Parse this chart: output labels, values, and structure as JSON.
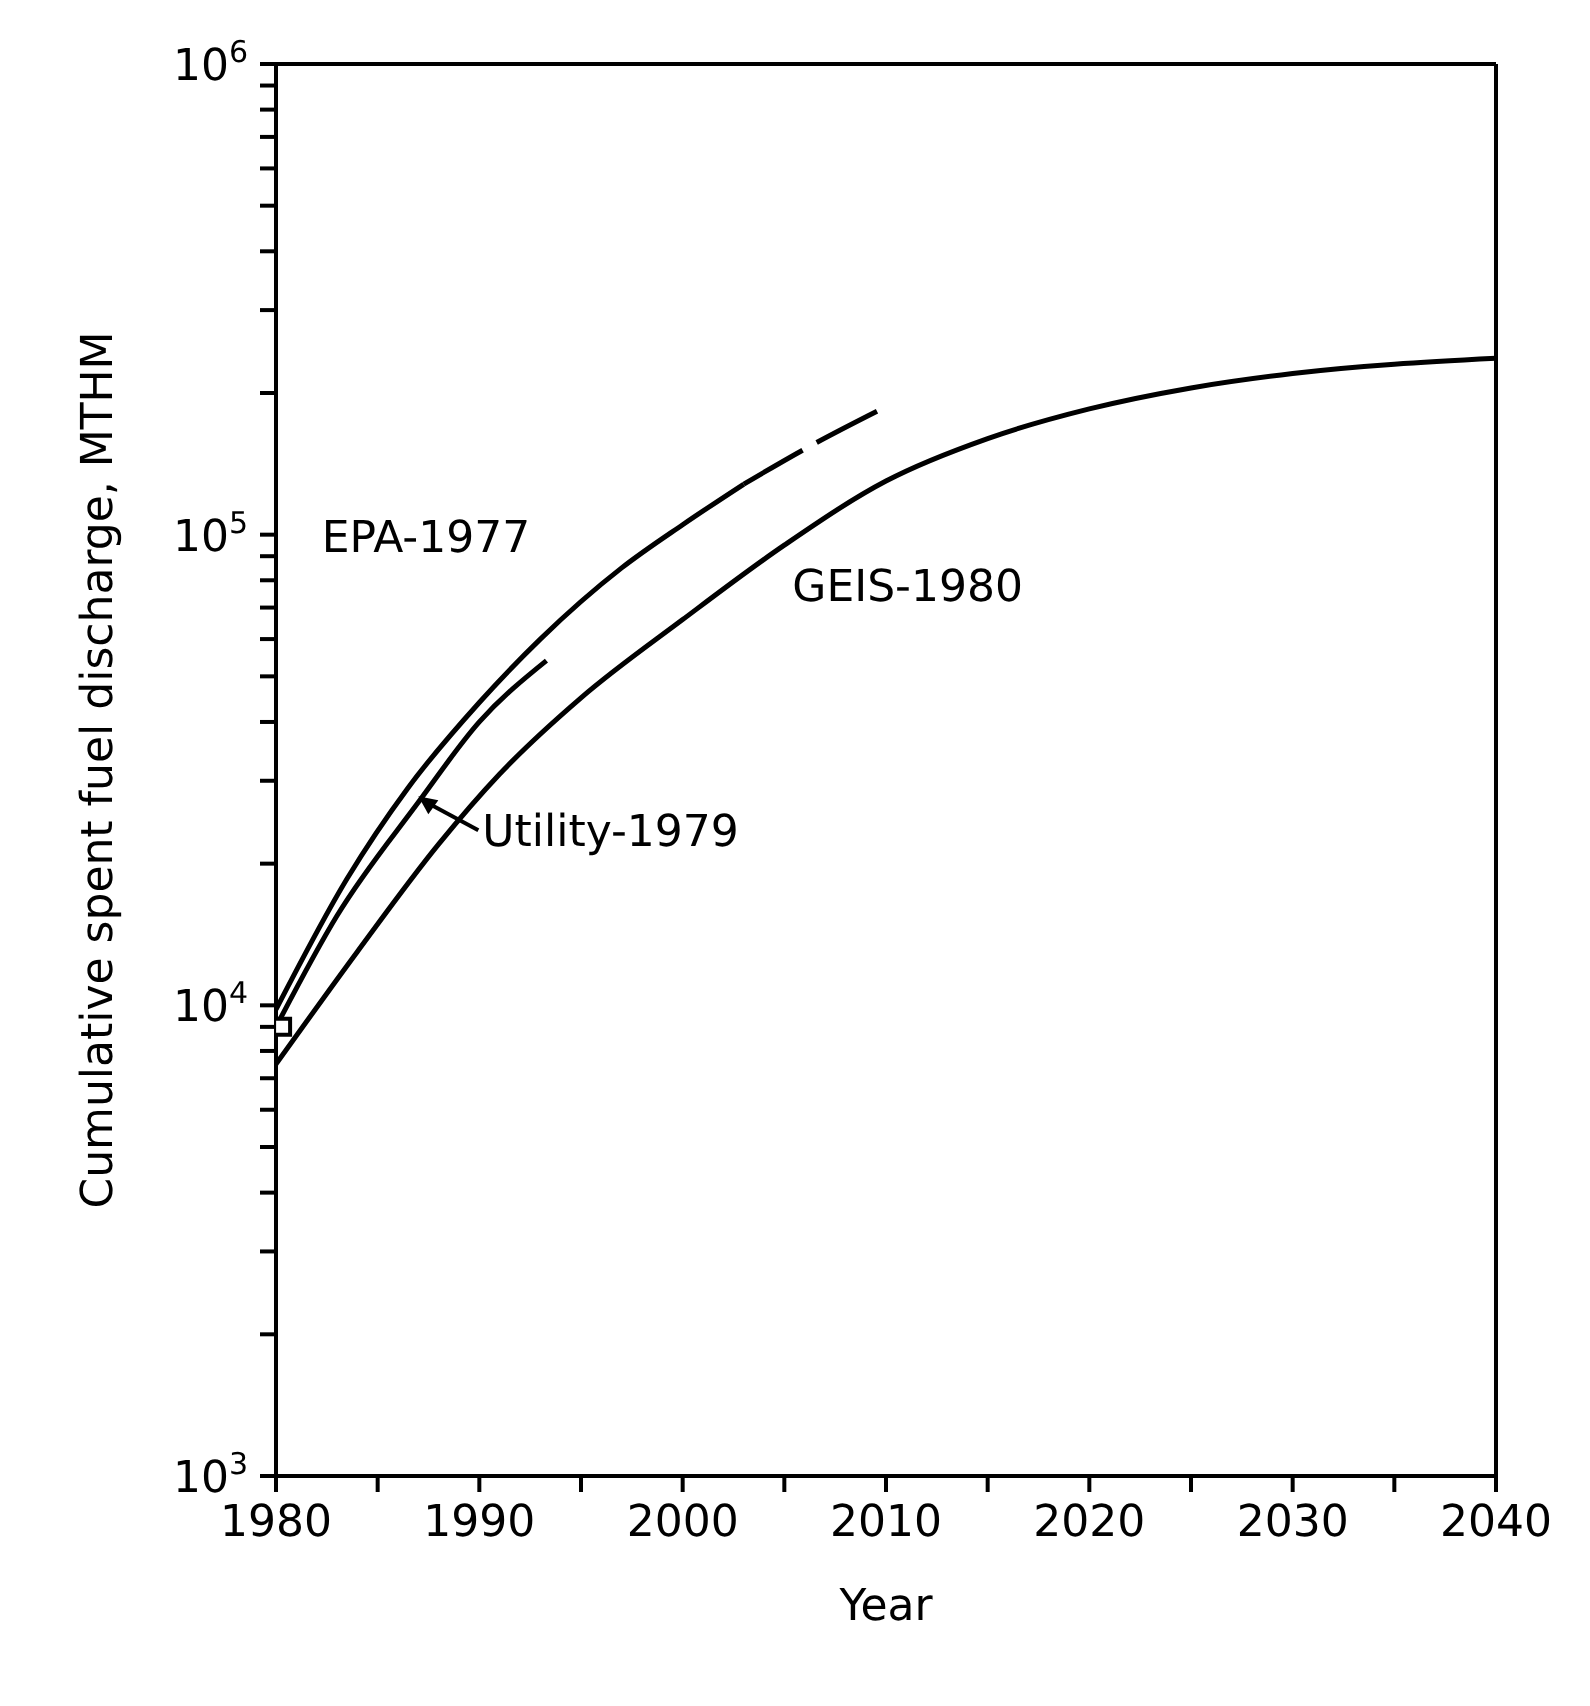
{
  "chart_data": {
    "type": "line",
    "xlabel": "Year",
    "ylabel": "Cumulative spent fuel discharge, MTHM",
    "log": "y",
    "xlim": [
      1980,
      2040
    ],
    "xticks": [
      1980,
      {
        "value": 1985,
        "label": null
      },
      1990,
      {
        "value": 1995,
        "label": null
      },
      2000,
      {
        "value": 2005,
        "label": null
      },
      2010,
      {
        "value": 2015,
        "label": null
      },
      2020,
      {
        "value": 2025,
        "label": null
      },
      2030,
      {
        "value": 2035,
        "label": null
      },
      2040
    ],
    "ylim": [
      1000,
      1000000
    ],
    "yticks": [
      {
        "value": 1000,
        "label": "10$^{3}$"
      },
      {
        "value": 2000,
        "label": null
      },
      {
        "value": 3000,
        "label": null
      },
      {
        "value": 4000,
        "label": null
      },
      {
        "value": 5000,
        "label": null
      },
      {
        "value": 6000,
        "label": null
      },
      {
        "value": 7000,
        "label": null
      },
      {
        "value": 8000,
        "label": null
      },
      {
        "value": 9000,
        "label": null
      },
      {
        "value": 10000,
        "label": "10$^{4}$"
      },
      {
        "value": 20000,
        "label": null
      },
      {
        "value": 30000,
        "label": null
      },
      {
        "value": 40000,
        "label": null
      },
      {
        "value": 50000,
        "label": null
      },
      {
        "value": 60000,
        "label": null
      },
      {
        "value": 70000,
        "label": null
      },
      {
        "value": 80000,
        "label": null
      },
      {
        "value": 90000,
        "label": null
      },
      {
        "value": 100000,
        "label": "10$^{5}$"
      },
      {
        "value": 200000,
        "label": null
      },
      {
        "value": 300000,
        "label": null
      },
      {
        "value": 400000,
        "label": null
      },
      {
        "value": 500000,
        "label": null
      },
      {
        "value": 600000,
        "label": null
      },
      {
        "value": 700000,
        "label": null
      },
      {
        "value": 800000,
        "label": null
      },
      {
        "value": 900000,
        "label": null
      },
      {
        "value": 1000000,
        "label": "10$^{6}$"
      }
    ],
    "series": [
      {
        "name": "EPA-1977",
        "color": "#000000",
        "line_style": "solid",
        "x": [
          1980,
          1983.5,
          1986.5,
          1990,
          1993,
          1997,
          2000,
          2003
        ],
        "values": [
          9800,
          18600,
          29000,
          44000,
          60000,
          85000,
          105000,
          128000
        ]
      },
      {
        "color": "#000000",
        "line_style": "dashed",
        "x": [
          2003,
          2006,
          2010
        ],
        "values": [
          128000,
          152000,
          187000
        ]
      },
      {
        "name": "Utility-1979",
        "color": "#000000",
        "line_style": "solid",
        "x": [
          1980,
          1983,
          1987,
          1990,
          1993.3
        ],
        "values": [
          9000,
          15500,
          27000,
          40000,
          54000
        ]
      },
      {
        "name": "GEIS-1980",
        "color": "#000000",
        "line_style": "solid",
        "x": [
          1980,
          1984,
          1988,
          1991,
          1995,
          2000,
          2005,
          2010,
          2015,
          2020,
          2025,
          2030,
          2040
        ],
        "values": [
          7500,
          13000,
          22000,
          31000,
          45000,
          66000,
          95000,
          130000,
          160000,
          185000,
          205000,
          220000,
          237000
        ]
      },
      {
        "type": "scatter",
        "color": "#000000",
        "marker": "square",
        "x": [
          1980.3
        ],
        "values": [
          9000
        ]
      }
    ]
  }
}
